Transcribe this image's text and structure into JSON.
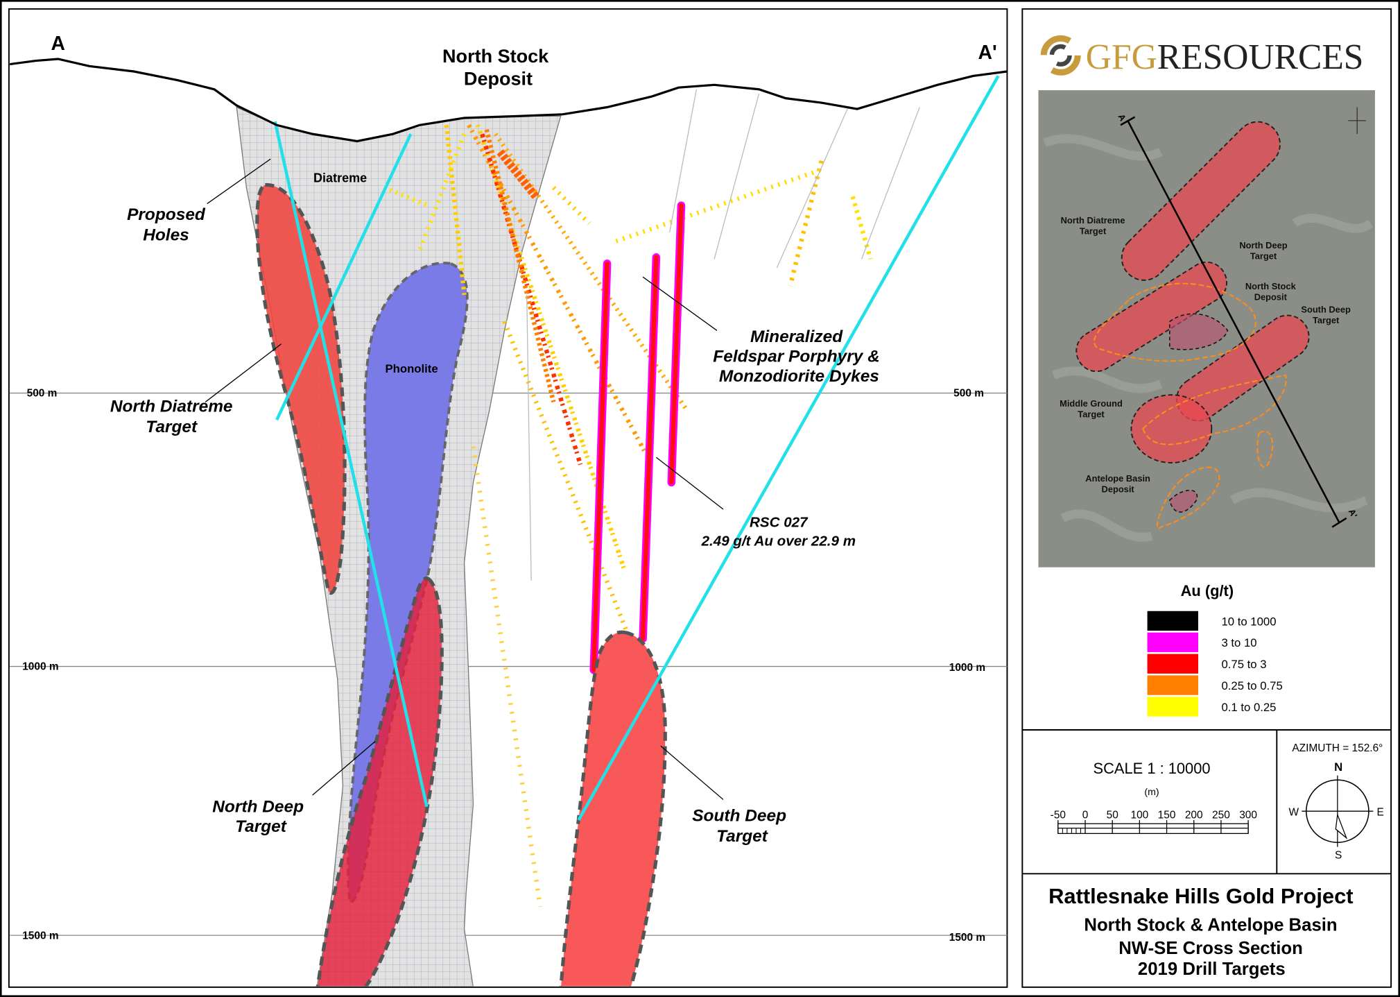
{
  "section": {
    "endpoints": [
      "A",
      "A'"
    ],
    "elevation_labels": [
      "500 m",
      "1000 m",
      "1500 m"
    ],
    "north_stock": [
      "North Stock",
      "Deposit"
    ],
    "diatreme": "Diatreme",
    "proposed_holes": [
      "Proposed",
      "Holes"
    ],
    "phonolite": "Phonolite",
    "north_diatreme_target": [
      "North Diatreme",
      "Target"
    ],
    "dykes": [
      "Mineralized",
      "Feldspar Porphyry &",
      "Monzodiorite Dykes"
    ],
    "intercept": [
      "RSC 027",
      "2.49 g/t Au over 22.9 m"
    ],
    "north_deep_target": [
      "North Deep",
      "Target"
    ],
    "south_deep_target": [
      "South Deep",
      "Target"
    ]
  },
  "logo": {
    "parts": [
      "GFG",
      "RESOURCES"
    ]
  },
  "inset_map": {
    "endpoints": [
      "A",
      "A'"
    ],
    "labels": [
      [
        "North Diatreme",
        "Target"
      ],
      [
        "North Deep",
        "Target"
      ],
      [
        "North Stock",
        "Deposit"
      ],
      [
        "South Deep",
        "Target"
      ],
      [
        "Middle Ground",
        "Target"
      ],
      [
        "Antelope Basin",
        "Deposit"
      ]
    ]
  },
  "legend": {
    "title": "Au (g/t)",
    "items": [
      {
        "label": "10 to 1000",
        "color": "#000000"
      },
      {
        "label": "3 to 10",
        "color": "#ff00ff"
      },
      {
        "label": "0.75 to 3",
        "color": "#ff0000"
      },
      {
        "label": "0.25 to 0.75",
        "color": "#ff7f00"
      },
      {
        "label": "0.1 to 0.25",
        "color": "#ffff00"
      }
    ]
  },
  "scale": {
    "text": "SCALE  1 : 10000",
    "unit": "(m)",
    "ticks": [
      "-50",
      "0",
      "50",
      "100",
      "150",
      "200",
      "250",
      "300"
    ]
  },
  "compass": {
    "azimuth": "AZIMUTH = 152.6°",
    "directions": {
      "north": "N",
      "east": "E",
      "south": "S",
      "west": "W"
    }
  },
  "title_block": {
    "lines": [
      "Rattlesnake Hills Gold Project",
      "North Stock & Antelope Basin",
      "NW-SE Cross Section",
      "2019 Drill Targets"
    ]
  }
}
